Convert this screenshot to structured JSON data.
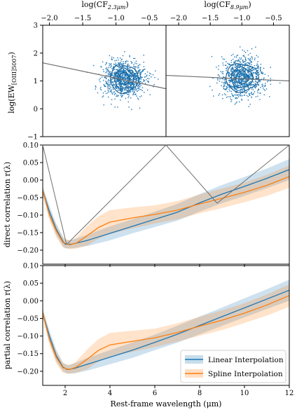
{
  "chart_data": [
    {
      "type": "scatter",
      "id": "scatter-cf23",
      "xlabel": "log(CF",
      "xlabel_sub": "2.3μm",
      "xlabel_close": ")",
      "ylabel": "log(EW",
      "ylabel_sub": "[OIII]5007",
      "ylabel_close": ")",
      "xlim": [
        -2.1,
        -0.25
      ],
      "ylim": [
        -1.0,
        3.0
      ],
      "xticks": [
        -2.0,
        -1.5,
        -1.0,
        -0.5
      ],
      "xtick_labels": [
        "−2.0",
        "−1.5",
        "−1.0",
        "−0.5"
      ],
      "yticks": [
        -1,
        0,
        1,
        2,
        3
      ],
      "ytick_labels": [
        "−1",
        "0",
        "1",
        "2",
        "3"
      ],
      "cloud": {
        "center_x": -0.88,
        "center_y": 1.08,
        "spread_x": 0.16,
        "spread_y": 0.33,
        "n_points": 950
      },
      "contours": [
        {
          "rx": 0.08,
          "ry": 0.22
        },
        {
          "rx": 0.14,
          "ry": 0.36
        },
        {
          "rx": 0.21,
          "ry": 0.5
        }
      ],
      "trend_line": {
        "x1": -2.1,
        "y1": 1.65,
        "x2": -0.25,
        "y2": 0.72
      }
    },
    {
      "type": "scatter",
      "id": "scatter-cf89",
      "xlabel": "log(CF",
      "xlabel_sub": "8.9μm",
      "xlabel_close": ")",
      "xlim": [
        -2.2,
        -0.25
      ],
      "ylim": [
        -1.0,
        3.0
      ],
      "xticks": [
        -2.0,
        -1.5,
        -1.0,
        -0.5
      ],
      "xtick_labels": [
        "−2.0",
        "−1.5",
        "−1.0",
        "−0.5"
      ],
      "cloud": {
        "center_x": -1.0,
        "center_y": 1.12,
        "spread_x": 0.17,
        "spread_y": 0.33,
        "n_points": 950
      },
      "contours": [
        {
          "rx": 0.1,
          "ry": 0.22
        },
        {
          "rx": 0.17,
          "ry": 0.36
        },
        {
          "rx": 0.26,
          "ry": 0.5
        }
      ],
      "trend_line": {
        "x1": -2.2,
        "y1": 1.2,
        "x2": -0.25,
        "y2": 1.0
      }
    },
    {
      "type": "line",
      "id": "direct-correlation",
      "ylabel": "direct correlation r(λ)",
      "xlim": [
        1.0,
        12.0
      ],
      "ylim": [
        -0.24,
        0.1
      ],
      "yticks": [
        -0.2,
        -0.15,
        -0.1,
        -0.05,
        0.0,
        0.05,
        0.1
      ],
      "ytick_labels": [
        "−0.20",
        "−0.15",
        "−0.10",
        "−0.05",
        "0.00",
        "0.05",
        "0.10"
      ],
      "xticks": [
        2,
        4,
        6,
        8,
        10,
        12
      ],
      "series": [
        {
          "name": "Linear Interpolation",
          "color": "#1f77b4",
          "x": [
            1.0,
            1.3,
            1.6,
            1.9,
            2.0,
            2.3,
            3.0,
            4.0,
            5.0,
            6.0,
            7.0,
            8.0,
            9.0,
            10.0,
            11.0,
            12.0
          ],
          "y": [
            -0.03,
            -0.09,
            -0.14,
            -0.175,
            -0.183,
            -0.183,
            -0.172,
            -0.152,
            -0.132,
            -0.112,
            -0.092,
            -0.065,
            -0.04,
            -0.018,
            0.005,
            0.03
          ],
          "band": [
            0.012,
            0.016,
            0.016,
            0.014,
            0.012,
            0.012,
            0.016,
            0.02,
            0.02,
            0.022,
            0.024,
            0.025,
            0.026,
            0.027,
            0.028,
            0.03
          ]
        },
        {
          "name": "Spline Interpolation",
          "color": "#ff7f0e",
          "x": [
            1.0,
            1.3,
            1.6,
            1.9,
            2.2,
            2.5,
            3.0,
            3.5,
            4.0,
            5.0,
            6.0,
            7.0,
            8.0,
            9.0,
            10.0,
            11.0,
            12.0
          ],
          "y": [
            -0.03,
            -0.1,
            -0.145,
            -0.178,
            -0.185,
            -0.18,
            -0.158,
            -0.135,
            -0.12,
            -0.108,
            -0.098,
            -0.086,
            -0.068,
            -0.052,
            -0.035,
            -0.015,
            0.01
          ],
          "band": [
            0.012,
            0.016,
            0.018,
            0.014,
            0.012,
            0.016,
            0.028,
            0.032,
            0.034,
            0.03,
            0.026,
            0.026,
            0.027,
            0.028,
            0.028,
            0.03,
            0.032
          ]
        }
      ]
    },
    {
      "type": "line",
      "id": "partial-correlation",
      "ylabel": "partial correlation r(λ)",
      "xlabel": "Rest-frame wavelength (μm)",
      "xlim": [
        1.0,
        12.0
      ],
      "ylim": [
        -0.24,
        0.1
      ],
      "yticks": [
        -0.2,
        -0.15,
        -0.1,
        -0.05,
        0.0,
        0.05,
        0.1
      ],
      "ytick_labels": [
        "−0.20",
        "−0.15",
        "−0.10",
        "−0.05",
        "0.00",
        "0.05",
        "0.10"
      ],
      "xticks": [
        2,
        4,
        6,
        8,
        10,
        12
      ],
      "xtick_labels": [
        "2",
        "4",
        "6",
        "8",
        "10",
        "12"
      ],
      "legend": {
        "position": "lower-right",
        "entries": [
          "Linear Interpolation",
          "Spline Interpolation"
        ]
      },
      "series": [
        {
          "name": "Linear Interpolation",
          "color": "#1f77b4",
          "x": [
            1.0,
            1.3,
            1.6,
            1.9,
            2.1,
            2.4,
            3.0,
            4.0,
            5.0,
            6.0,
            7.0,
            8.0,
            9.0,
            10.0,
            11.0,
            12.0
          ],
          "y": [
            -0.035,
            -0.1,
            -0.155,
            -0.188,
            -0.195,
            -0.192,
            -0.18,
            -0.16,
            -0.14,
            -0.118,
            -0.095,
            -0.07,
            -0.045,
            -0.02,
            0.005,
            0.03
          ],
          "band": [
            0.012,
            0.016,
            0.016,
            0.012,
            0.012,
            0.014,
            0.018,
            0.02,
            0.022,
            0.022,
            0.024,
            0.025,
            0.026,
            0.027,
            0.028,
            0.03
          ]
        },
        {
          "name": "Spline Interpolation",
          "color": "#ff7f0e",
          "x": [
            1.0,
            1.3,
            1.6,
            1.9,
            2.2,
            2.5,
            3.0,
            3.5,
            4.0,
            5.0,
            6.0,
            7.0,
            8.0,
            9.0,
            10.0,
            11.0,
            12.0
          ],
          "y": [
            -0.035,
            -0.11,
            -0.16,
            -0.19,
            -0.195,
            -0.188,
            -0.165,
            -0.14,
            -0.125,
            -0.115,
            -0.105,
            -0.09,
            -0.072,
            -0.055,
            -0.035,
            -0.012,
            0.015
          ],
          "band": [
            0.012,
            0.016,
            0.018,
            0.014,
            0.012,
            0.016,
            0.028,
            0.032,
            0.034,
            0.03,
            0.026,
            0.026,
            0.027,
            0.028,
            0.028,
            0.03,
            0.032
          ]
        }
      ]
    }
  ]
}
